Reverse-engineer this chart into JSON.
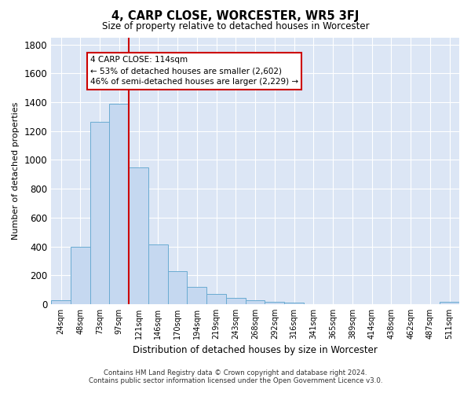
{
  "title": "4, CARP CLOSE, WORCESTER, WR5 3FJ",
  "subtitle": "Size of property relative to detached houses in Worcester",
  "xlabel": "Distribution of detached houses by size in Worcester",
  "ylabel": "Number of detached properties",
  "footer_line1": "Contains HM Land Registry data © Crown copyright and database right 2024.",
  "footer_line2": "Contains public sector information licensed under the Open Government Licence v3.0.",
  "annotation_line1": "4 CARP CLOSE: 114sqm",
  "annotation_line2": "← 53% of detached houses are smaller (2,602)",
  "annotation_line3": "46% of semi-detached houses are larger (2,229) →",
  "bar_color": "#c5d8f0",
  "bar_edge_color": "#6aabd2",
  "vline_color": "#cc0000",
  "vline_x_index": 4,
  "categories": [
    "24sqm",
    "48sqm",
    "73sqm",
    "97sqm",
    "121sqm",
    "146sqm",
    "170sqm",
    "194sqm",
    "219sqm",
    "243sqm",
    "268sqm",
    "292sqm",
    "316sqm",
    "341sqm",
    "365sqm",
    "389sqm",
    "414sqm",
    "438sqm",
    "462sqm",
    "487sqm",
    "511sqm"
  ],
  "values": [
    25,
    395,
    1265,
    1390,
    950,
    415,
    230,
    120,
    70,
    45,
    25,
    15,
    10,
    0,
    0,
    0,
    0,
    0,
    0,
    0,
    15
  ],
  "ylim": [
    0,
    1850
  ],
  "yticks": [
    0,
    200,
    400,
    600,
    800,
    1000,
    1200,
    1400,
    1600,
    1800
  ],
  "bg_color": "#dce6f5",
  "fig_bg_color": "#ffffff"
}
